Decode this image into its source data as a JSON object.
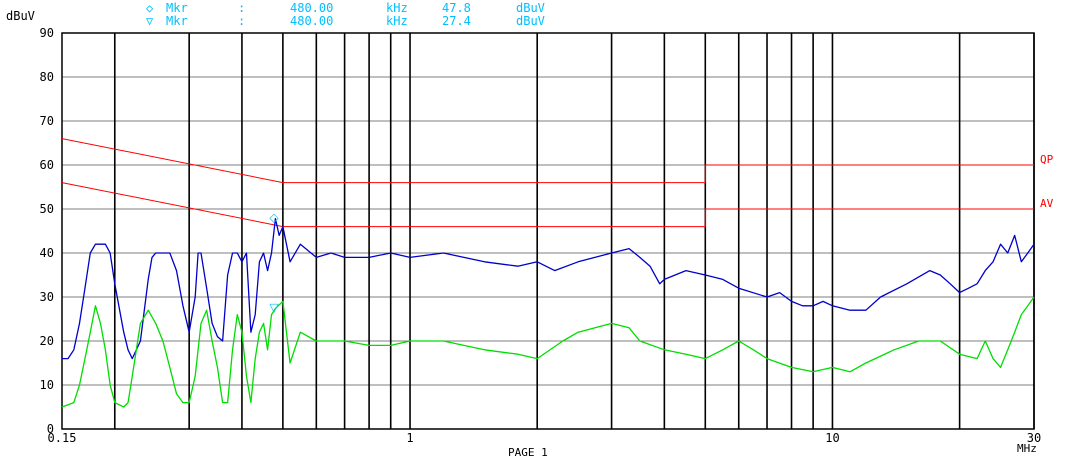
{
  "markers": [
    {
      "symbol": "◇",
      "label": "Mkr",
      "sep": ":",
      "freq": "480.00",
      "freq_unit": "kHz",
      "level": "47.8",
      "level_unit": "dBuV",
      "color": "#00bfff"
    },
    {
      "symbol": "▽",
      "label": "Mkr",
      "sep": ":",
      "freq": "480.00",
      "freq_unit": "kHz",
      "level": "27.4",
      "level_unit": "dBuV",
      "color": "#00bfff"
    }
  ],
  "footer": {
    "page_label": "PAGE 1"
  },
  "chart_data": {
    "type": "line",
    "x_scale": "log",
    "xlim": [
      0.15,
      30
    ],
    "ylim": [
      0,
      90
    ],
    "ylabel": "dBuV",
    "y_ticks": [
      "0",
      "10",
      "20",
      "30",
      "40",
      "50",
      "60",
      "70",
      "80",
      "90"
    ],
    "x_ticks": [
      {
        "value": 0.15,
        "label": "0.15"
      },
      {
        "value": 1,
        "label": "1"
      },
      {
        "value": 10,
        "label": "10"
      },
      {
        "value": 30,
        "label": "30"
      }
    ],
    "x_unit_label": "MHz",
    "x_gridlines": [
      0.2,
      0.3,
      0.4,
      0.5,
      0.6,
      0.7,
      0.8,
      0.9,
      1,
      2,
      3,
      4,
      5,
      6,
      7,
      8,
      9,
      10,
      20,
      30
    ],
    "grid": true,
    "limit_lines": [
      {
        "name": "QP",
        "color": "#ff0000",
        "points": [
          [
            0.15,
            66
          ],
          [
            0.5,
            56
          ],
          [
            5,
            56
          ],
          [
            5,
            60
          ],
          [
            30,
            60
          ]
        ]
      },
      {
        "name": "AV",
        "color": "#ff0000",
        "points": [
          [
            0.15,
            56
          ],
          [
            0.5,
            46
          ],
          [
            5,
            46
          ],
          [
            5,
            50
          ],
          [
            30,
            50
          ]
        ]
      }
    ],
    "series": [
      {
        "color": "#0000cc",
        "points": [
          [
            0.15,
            16
          ],
          [
            0.155,
            16
          ],
          [
            0.16,
            18
          ],
          [
            0.165,
            24
          ],
          [
            0.17,
            32
          ],
          [
            0.175,
            40
          ],
          [
            0.18,
            42
          ],
          [
            0.19,
            42
          ],
          [
            0.195,
            40
          ],
          [
            0.2,
            33
          ],
          [
            0.21,
            22
          ],
          [
            0.215,
            18
          ],
          [
            0.22,
            16
          ],
          [
            0.23,
            20
          ],
          [
            0.24,
            34
          ],
          [
            0.245,
            39
          ],
          [
            0.25,
            40
          ],
          [
            0.27,
            40
          ],
          [
            0.28,
            36
          ],
          [
            0.29,
            28
          ],
          [
            0.3,
            22
          ],
          [
            0.31,
            30
          ],
          [
            0.315,
            40
          ],
          [
            0.32,
            40
          ],
          [
            0.33,
            32
          ],
          [
            0.34,
            24
          ],
          [
            0.35,
            21
          ],
          [
            0.36,
            20
          ],
          [
            0.37,
            35
          ],
          [
            0.38,
            40
          ],
          [
            0.39,
            40
          ],
          [
            0.4,
            38
          ],
          [
            0.41,
            40
          ],
          [
            0.42,
            22
          ],
          [
            0.43,
            26
          ],
          [
            0.44,
            38
          ],
          [
            0.45,
            40
          ],
          [
            0.46,
            36
          ],
          [
            0.47,
            40
          ],
          [
            0.48,
            47.8
          ],
          [
            0.49,
            44
          ],
          [
            0.5,
            46
          ],
          [
            0.52,
            38
          ],
          [
            0.55,
            42
          ],
          [
            0.6,
            39
          ],
          [
            0.65,
            40
          ],
          [
            0.7,
            39
          ],
          [
            0.8,
            39
          ],
          [
            0.9,
            40
          ],
          [
            1.0,
            39
          ],
          [
            1.2,
            40
          ],
          [
            1.5,
            38
          ],
          [
            1.8,
            37
          ],
          [
            2.0,
            38
          ],
          [
            2.2,
            36
          ],
          [
            2.5,
            38
          ],
          [
            3.0,
            40
          ],
          [
            3.3,
            41
          ],
          [
            3.5,
            39
          ],
          [
            3.7,
            37
          ],
          [
            3.9,
            33
          ],
          [
            4.0,
            34
          ],
          [
            4.5,
            36
          ],
          [
            5.0,
            35
          ],
          [
            5.5,
            34
          ],
          [
            6.0,
            32
          ],
          [
            7.0,
            30
          ],
          [
            7.5,
            31
          ],
          [
            8.0,
            29
          ],
          [
            8.5,
            28
          ],
          [
            9.0,
            28
          ],
          [
            9.5,
            29
          ],
          [
            10.0,
            28
          ],
          [
            11.0,
            27
          ],
          [
            12.0,
            27
          ],
          [
            13.0,
            30
          ],
          [
            15.0,
            33
          ],
          [
            17.0,
            36
          ],
          [
            18.0,
            35
          ],
          [
            19.0,
            33
          ],
          [
            20.0,
            31
          ],
          [
            21.0,
            32
          ],
          [
            22.0,
            33
          ],
          [
            23.0,
            36
          ],
          [
            24.0,
            38
          ],
          [
            25.0,
            42
          ],
          [
            26.0,
            40
          ],
          [
            27.0,
            44
          ],
          [
            28.0,
            38
          ],
          [
            29.0,
            40
          ],
          [
            30.0,
            42
          ]
        ]
      },
      {
        "color": "#00dd00",
        "points": [
          [
            0.15,
            5
          ],
          [
            0.16,
            6
          ],
          [
            0.165,
            10
          ],
          [
            0.17,
            16
          ],
          [
            0.175,
            22
          ],
          [
            0.18,
            28
          ],
          [
            0.185,
            24
          ],
          [
            0.19,
            18
          ],
          [
            0.195,
            10
          ],
          [
            0.2,
            6
          ],
          [
            0.21,
            5
          ],
          [
            0.215,
            6
          ],
          [
            0.22,
            12
          ],
          [
            0.23,
            24
          ],
          [
            0.24,
            27
          ],
          [
            0.25,
            24
          ],
          [
            0.26,
            20
          ],
          [
            0.27,
            14
          ],
          [
            0.28,
            8
          ],
          [
            0.29,
            6
          ],
          [
            0.3,
            6
          ],
          [
            0.31,
            12
          ],
          [
            0.32,
            24
          ],
          [
            0.33,
            27
          ],
          [
            0.34,
            20
          ],
          [
            0.35,
            14
          ],
          [
            0.36,
            6
          ],
          [
            0.37,
            6
          ],
          [
            0.38,
            18
          ],
          [
            0.39,
            26
          ],
          [
            0.4,
            22
          ],
          [
            0.41,
            12
          ],
          [
            0.42,
            6
          ],
          [
            0.43,
            16
          ],
          [
            0.44,
            22
          ],
          [
            0.45,
            24
          ],
          [
            0.46,
            18
          ],
          [
            0.47,
            26
          ],
          [
            0.48,
            27.4
          ],
          [
            0.5,
            29
          ],
          [
            0.52,
            15
          ],
          [
            0.55,
            22
          ],
          [
            0.6,
            20
          ],
          [
            0.7,
            20
          ],
          [
            0.8,
            19
          ],
          [
            0.9,
            19
          ],
          [
            1.0,
            20
          ],
          [
            1.2,
            20
          ],
          [
            1.5,
            18
          ],
          [
            1.8,
            17
          ],
          [
            2.0,
            16
          ],
          [
            2.3,
            20
          ],
          [
            2.5,
            22
          ],
          [
            3.0,
            24
          ],
          [
            3.3,
            23
          ],
          [
            3.5,
            20
          ],
          [
            4.0,
            18
          ],
          [
            4.5,
            17
          ],
          [
            5.0,
            16
          ],
          [
            5.5,
            18
          ],
          [
            6.0,
            20
          ],
          [
            6.5,
            18
          ],
          [
            7.0,
            16
          ],
          [
            8.0,
            14
          ],
          [
            9.0,
            13
          ],
          [
            10.0,
            14
          ],
          [
            11.0,
            13
          ],
          [
            12.0,
            15
          ],
          [
            14.0,
            18
          ],
          [
            16.0,
            20
          ],
          [
            18.0,
            20
          ],
          [
            20.0,
            17
          ],
          [
            22.0,
            16
          ],
          [
            23.0,
            20
          ],
          [
            24.0,
            16
          ],
          [
            25.0,
            14
          ],
          [
            26.0,
            18
          ],
          [
            27.0,
            22
          ],
          [
            28.0,
            26
          ],
          [
            29.0,
            28
          ],
          [
            30.0,
            30
          ]
        ]
      }
    ],
    "marker_points": [
      {
        "symbol": "◇",
        "x": 0.48,
        "y": 47.8,
        "color": "#00bfff"
      },
      {
        "symbol": "▽",
        "x": 0.48,
        "y": 27.4,
        "color": "#00bfff"
      }
    ]
  }
}
